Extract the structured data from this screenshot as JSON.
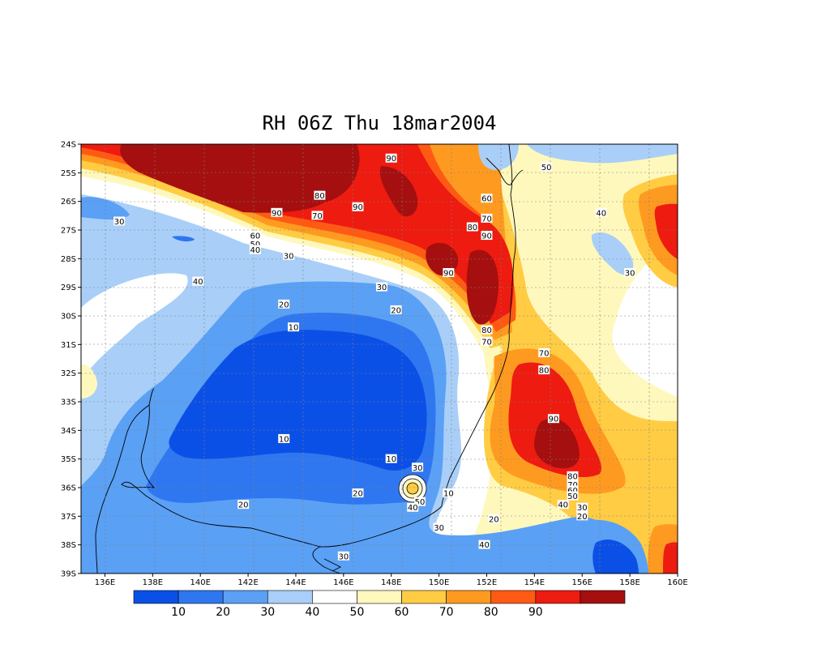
{
  "title": "RH 06Z Thu 18mar2004",
  "y_ticks": [
    "24S",
    "25S",
    "26S",
    "27S",
    "28S",
    "29S",
    "30S",
    "31S",
    "32S",
    "33S",
    "34S",
    "35S",
    "36S",
    "37S",
    "38S",
    "39S"
  ],
  "x_ticks": [
    "136E",
    "138E",
    "140E",
    "142E",
    "144E",
    "146E",
    "148E",
    "150E",
    "152E",
    "154E",
    "156E",
    "158E",
    "160E"
  ],
  "colorbar": {
    "colors": [
      "#0b50e6",
      "#2f77f0",
      "#5aa0f5",
      "#a9cff8",
      "#ffffff",
      "#fff8bd",
      "#ffcc44",
      "#ff9a20",
      "#ff5a14",
      "#ee1b10",
      "#a50f0f"
    ],
    "labels": [
      "10",
      "20",
      "30",
      "40",
      "50",
      "60",
      "70",
      "80",
      "90"
    ]
  },
  "contour_labels": [
    {
      "text": "90",
      "lon": 148.0,
      "lat": -24.5
    },
    {
      "text": "80",
      "lon": 145.0,
      "lat": -25.8
    },
    {
      "text": "90",
      "lon": 146.6,
      "lat": -26.2
    },
    {
      "text": "90",
      "lon": 143.2,
      "lat": -26.4
    },
    {
      "text": "70",
      "lon": 144.9,
      "lat": -26.5
    },
    {
      "text": "60",
      "lon": 152.0,
      "lat": -25.9
    },
    {
      "text": "50",
      "lon": 154.5,
      "lat": -24.8
    },
    {
      "text": "70",
      "lon": 152.0,
      "lat": -26.6
    },
    {
      "text": "80",
      "lon": 151.4,
      "lat": -26.9
    },
    {
      "text": "90",
      "lon": 152.0,
      "lat": -27.2
    },
    {
      "text": "40",
      "lon": 156.8,
      "lat": -26.4
    },
    {
      "text": "30",
      "lon": 136.6,
      "lat": -26.7
    },
    {
      "text": "60",
      "lon": 142.3,
      "lat": -27.2
    },
    {
      "text": "50",
      "lon": 142.3,
      "lat": -27.5
    },
    {
      "text": "40",
      "lon": 142.3,
      "lat": -27.7
    },
    {
      "text": "30",
      "lon": 143.7,
      "lat": -27.9
    },
    {
      "text": "90",
      "lon": 150.4,
      "lat": -28.5
    },
    {
      "text": "30",
      "lon": 158.0,
      "lat": -28.5
    },
    {
      "text": "40",
      "lon": 139.9,
      "lat": -28.8
    },
    {
      "text": "30",
      "lon": 147.6,
      "lat": -29.0
    },
    {
      "text": "20",
      "lon": 143.5,
      "lat": -29.6
    },
    {
      "text": "20",
      "lon": 148.2,
      "lat": -29.8
    },
    {
      "text": "10",
      "lon": 143.9,
      "lat": -30.4
    },
    {
      "text": "80",
      "lon": 152.0,
      "lat": -30.5
    },
    {
      "text": "70",
      "lon": 152.0,
      "lat": -30.9
    },
    {
      "text": "70",
      "lon": 154.4,
      "lat": -31.3
    },
    {
      "text": "80",
      "lon": 154.4,
      "lat": -31.9
    },
    {
      "text": "90",
      "lon": 154.8,
      "lat": -33.6
    },
    {
      "text": "10",
      "lon": 143.5,
      "lat": -34.3
    },
    {
      "text": "10",
      "lon": 148.0,
      "lat": -35.0
    },
    {
      "text": "30",
      "lon": 149.1,
      "lat": -35.3
    },
    {
      "text": "80",
      "lon": 155.6,
      "lat": -35.6
    },
    {
      "text": "70",
      "lon": 155.6,
      "lat": -35.9
    },
    {
      "text": "60",
      "lon": 155.6,
      "lat": -36.1
    },
    {
      "text": "50",
      "lon": 155.6,
      "lat": -36.3
    },
    {
      "text": "20",
      "lon": 146.6,
      "lat": -36.2
    },
    {
      "text": "10",
      "lon": 150.4,
      "lat": -36.2
    },
    {
      "text": "50",
      "lon": 149.2,
      "lat": -36.5
    },
    {
      "text": "40",
      "lon": 155.2,
      "lat": -36.6
    },
    {
      "text": "40",
      "lon": 148.9,
      "lat": -36.7
    },
    {
      "text": "30",
      "lon": 156.0,
      "lat": -36.7
    },
    {
      "text": "20",
      "lon": 141.8,
      "lat": -36.6
    },
    {
      "text": "20",
      "lon": 156.0,
      "lat": -37.0
    },
    {
      "text": "20",
      "lon": 152.3,
      "lat": -37.1
    },
    {
      "text": "30",
      "lon": 150.0,
      "lat": -37.4
    },
    {
      "text": "40",
      "lon": 151.9,
      "lat": -38.0
    },
    {
      "text": "30",
      "lon": 146.0,
      "lat": -38.4
    }
  ]
}
